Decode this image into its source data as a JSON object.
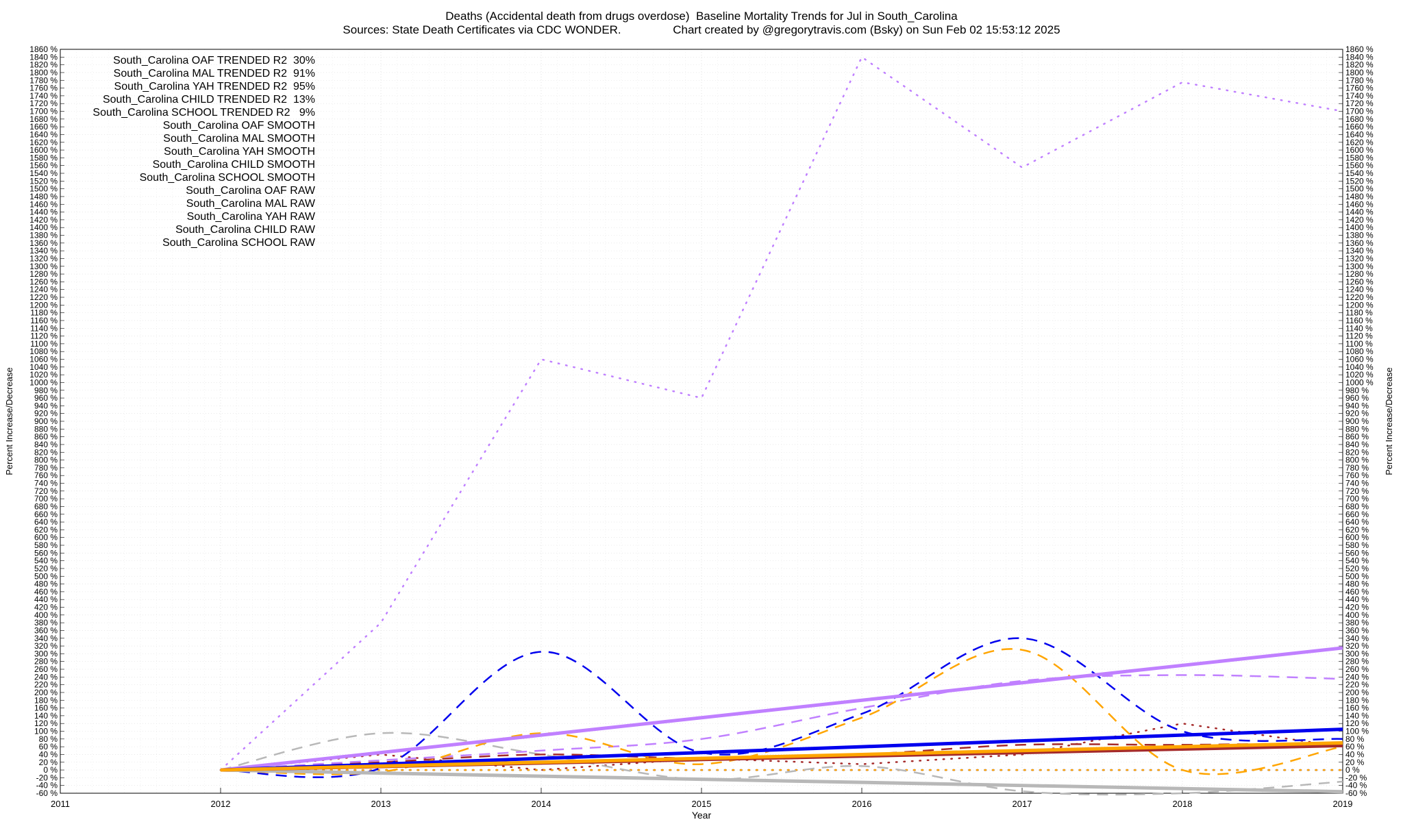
{
  "title_line1": "Deaths (Accidental death from drugs overdose)  Baseline Mortality Trends for Jul in South_Carolina",
  "title_line2": "Sources: State Death Certificates via CDC WONDER.                Chart created by @gregorytravis.com (Bsky) on Sun Feb 02 15:53:12 2025",
  "colors": {
    "OAF": "#b8b8b8",
    "MAL": "#a52a2a",
    "YAH": "#c080ff",
    "CHILD": "#0000ee",
    "SCHOOL": "#ffa500"
  },
  "chart_data": {
    "type": "line",
    "title": "Deaths (Accidental death from drugs overdose)  Baseline Mortality Trends for Jul in South_Carolina",
    "xlabel": "Year",
    "ylabel": "Percent Increase/Decrease",
    "xlim": [
      2011,
      2019
    ],
    "ylim": [
      -60,
      1860
    ],
    "x_ticks": [
      "2011",
      "2012",
      "2013",
      "2014",
      "2015",
      "2016",
      "2017",
      "2018",
      "2019"
    ],
    "y_tick_step": 20,
    "y_tick_suffix": " %",
    "grid": true,
    "legend_position": "top-left",
    "x": [
      2012,
      2013,
      2014,
      2015,
      2016,
      2017,
      2018,
      2019
    ],
    "series": [
      {
        "name": "South_Carolina OAF TRENDED R2  30%",
        "group": "OAF",
        "style": "trend",
        "values": [
          0,
          -8,
          -16,
          -24,
          -32,
          -40,
          -48,
          -56
        ]
      },
      {
        "name": "South_Carolina MAL TRENDED R2  91%",
        "group": "MAL",
        "style": "trend",
        "values": [
          0,
          9,
          18,
          27,
          36,
          45,
          54,
          63
        ]
      },
      {
        "name": "South_Carolina YAH TRENDED R2  95%",
        "group": "YAH",
        "style": "trend",
        "values": [
          0,
          45,
          90,
          135,
          180,
          225,
          270,
          315
        ]
      },
      {
        "name": "South_Carolina CHILD TRENDED R2  13%",
        "group": "CHILD",
        "style": "trend",
        "values": [
          0,
          15,
          30,
          45,
          60,
          75,
          90,
          105
        ]
      },
      {
        "name": "South_Carolina SCHOOL TRENDED R2   9%",
        "group": "SCHOOL",
        "style": "trend",
        "values": [
          0,
          10,
          20,
          30,
          40,
          50,
          60,
          70
        ]
      },
      {
        "name": "South_Carolina OAF SMOOTH",
        "group": "OAF",
        "style": "smooth",
        "values": [
          0,
          95,
          40,
          -25,
          10,
          -55,
          -60,
          -30
        ]
      },
      {
        "name": "South_Carolina MAL SMOOTH",
        "group": "MAL",
        "style": "smooth",
        "values": [
          0,
          20,
          40,
          30,
          40,
          65,
          65,
          70
        ]
      },
      {
        "name": "South_Carolina YAH SMOOTH",
        "group": "YAH",
        "style": "smooth",
        "values": [
          0,
          25,
          50,
          80,
          160,
          230,
          245,
          235
        ]
      },
      {
        "name": "South_Carolina CHILD SMOOTH",
        "group": "CHILD",
        "style": "smooth",
        "values": [
          0,
          5,
          305,
          45,
          145,
          340,
          100,
          80
        ]
      },
      {
        "name": "South_Carolina SCHOOL SMOOTH",
        "group": "SCHOOL",
        "style": "smooth",
        "values": [
          0,
          -5,
          95,
          15,
          135,
          310,
          0,
          60
        ]
      },
      {
        "name": "South_Carolina OAF RAW",
        "group": "OAF",
        "style": "raw",
        "values": [
          0,
          0,
          0,
          0,
          0,
          0,
          0,
          0
        ]
      },
      {
        "name": "South_Carolina MAL RAW",
        "group": "MAL",
        "style": "raw",
        "values": [
          0,
          40,
          0,
          30,
          15,
          40,
          120,
          60
        ]
      },
      {
        "name": "South_Carolina YAH RAW",
        "group": "YAH",
        "style": "raw",
        "values": [
          0,
          380,
          1060,
          960,
          1840,
          1555,
          1775,
          1700
        ]
      },
      {
        "name": "South_Carolina CHILD RAW",
        "group": "CHILD",
        "style": "raw",
        "values": [
          0,
          0,
          0,
          0,
          0,
          0,
          0,
          0
        ]
      },
      {
        "name": "South_Carolina SCHOOL RAW",
        "group": "SCHOOL",
        "style": "raw",
        "values": [
          0,
          0,
          0,
          0,
          0,
          0,
          0,
          0
        ]
      }
    ]
  }
}
